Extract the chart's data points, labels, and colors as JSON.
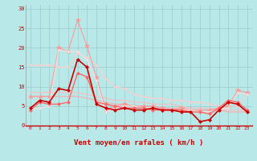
{
  "xlabel": "Vent moyen/en rafales ( km/h )",
  "background_color": "#b8e8e8",
  "grid_color": "#99cccc",
  "xlim": [
    -0.5,
    23.5
  ],
  "ylim": [
    0,
    31
  ],
  "yticks": [
    0,
    5,
    10,
    15,
    20,
    25,
    30
  ],
  "xticks": [
    0,
    1,
    2,
    3,
    4,
    5,
    6,
    7,
    8,
    9,
    10,
    11,
    12,
    13,
    14,
    15,
    16,
    17,
    18,
    19,
    20,
    21,
    22,
    23
  ],
  "lines": [
    {
      "x": [
        0,
        1,
        2,
        3,
        4,
        5,
        6,
        7,
        8,
        9,
        10,
        11,
        12,
        13,
        14,
        15,
        16,
        17,
        18,
        19,
        20,
        21,
        22,
        23
      ],
      "y": [
        7.5,
        7.5,
        7.5,
        7.5,
        7.5,
        7.5,
        7.0,
        6.5,
        6.0,
        5.5,
        5.5,
        5.0,
        5.0,
        5.0,
        4.5,
        4.5,
        4.5,
        4.0,
        4.0,
        4.0,
        4.0,
        3.5,
        3.5,
        3.5
      ],
      "color": "#ffaaaa",
      "lw": 0.8,
      "marker": null,
      "ls": "-"
    },
    {
      "x": [
        0,
        1,
        2,
        3,
        4,
        5,
        6,
        7,
        8,
        9,
        10,
        11,
        12,
        13,
        14,
        15,
        16,
        17,
        18,
        19,
        20,
        21,
        22,
        23
      ],
      "y": [
        8.5,
        8.5,
        8.5,
        8.5,
        8.5,
        8.5,
        8.0,
        7.5,
        7.0,
        6.5,
        6.5,
        6.0,
        6.0,
        5.5,
        5.5,
        5.5,
        5.0,
        4.5,
        4.5,
        4.5,
        4.0,
        4.0,
        4.0,
        4.0
      ],
      "color": "#ffbbbb",
      "lw": 0.8,
      "marker": null,
      "ls": "-"
    },
    {
      "x": [
        0,
        1,
        2,
        3,
        4,
        5,
        6,
        7,
        8,
        9,
        10,
        11,
        12,
        13,
        14,
        15,
        16,
        17,
        18,
        19,
        20,
        21,
        22,
        23
      ],
      "y": [
        15.5,
        15.5,
        15.5,
        15.0,
        15.0,
        18.5,
        17.5,
        15.5,
        12.0,
        10.0,
        9.5,
        8.0,
        7.5,
        7.0,
        7.0,
        6.5,
        6.5,
        6.0,
        6.0,
        5.5,
        5.0,
        5.0,
        5.0,
        8.5
      ],
      "color": "#ffcccc",
      "lw": 0.8,
      "marker": "D",
      "ls": "-",
      "markersize": 1.5
    },
    {
      "x": [
        0,
        1,
        2,
        3,
        4,
        5,
        6,
        7,
        8,
        9,
        10,
        11,
        12,
        13,
        14,
        15,
        16,
        17,
        18,
        19,
        20,
        21,
        22,
        23
      ],
      "y": [
        7.5,
        7.5,
        7.5,
        20.0,
        19.0,
        27.0,
        20.5,
        12.5,
        4.0,
        5.0,
        5.5,
        5.0,
        5.0,
        5.0,
        4.5,
        4.0,
        4.5,
        4.0,
        4.0,
        4.0,
        4.5,
        5.0,
        9.0,
        8.5
      ],
      "color": "#ff9999",
      "lw": 0.8,
      "marker": "*",
      "ls": "-",
      "markersize": 4
    },
    {
      "x": [
        0,
        1,
        2,
        3,
        4,
        5,
        6,
        7,
        8,
        9,
        10,
        11,
        12,
        13,
        14,
        15,
        16,
        17,
        18,
        19,
        20,
        21,
        22,
        23
      ],
      "y": [
        4.0,
        4.5,
        5.0,
        19.5,
        19.0,
        19.0,
        17.0,
        11.5,
        3.5,
        4.5,
        5.0,
        5.0,
        4.5,
        4.5,
        4.0,
        4.0,
        4.0,
        4.0,
        3.5,
        3.5,
        4.0,
        4.5,
        8.5,
        8.0
      ],
      "color": "#ffdddd",
      "lw": 0.8,
      "marker": "D",
      "ls": "-",
      "markersize": 1.5
    },
    {
      "x": [
        0,
        1,
        2,
        3,
        4,
        5,
        6,
        7,
        8,
        9,
        10,
        11,
        12,
        13,
        14,
        15,
        16,
        17,
        18,
        19,
        20,
        21,
        22,
        23
      ],
      "y": [
        4.0,
        6.0,
        5.5,
        5.5,
        6.0,
        13.5,
        12.5,
        6.0,
        5.5,
        5.0,
        4.5,
        4.5,
        4.5,
        4.0,
        4.0,
        4.0,
        4.0,
        3.5,
        3.5,
        3.0,
        4.5,
        6.5,
        6.0,
        4.0
      ],
      "color": "#ff6666",
      "lw": 1.0,
      "marker": "D",
      "ls": "-",
      "markersize": 2
    },
    {
      "x": [
        0,
        1,
        2,
        3,
        4,
        5,
        6,
        7,
        8,
        9,
        10,
        11,
        12,
        13,
        14,
        15,
        16,
        17,
        18,
        19,
        20,
        21,
        22,
        23
      ],
      "y": [
        4.5,
        6.5,
        6.0,
        9.5,
        9.0,
        17.0,
        15.0,
        5.5,
        4.5,
        4.0,
        4.5,
        4.0,
        4.0,
        4.5,
        4.0,
        4.0,
        3.5,
        3.5,
        1.0,
        1.5,
        4.0,
        6.0,
        5.5,
        3.5
      ],
      "color": "#cc0000",
      "lw": 1.2,
      "marker": "D",
      "ls": "-",
      "markersize": 2
    }
  ],
  "arrow_directions": [
    90,
    90,
    225,
    270,
    270,
    270,
    270,
    270,
    90,
    270,
    270,
    270,
    270,
    270,
    315,
    315,
    45,
    45,
    270,
    270,
    315,
    315,
    315,
    315
  ]
}
